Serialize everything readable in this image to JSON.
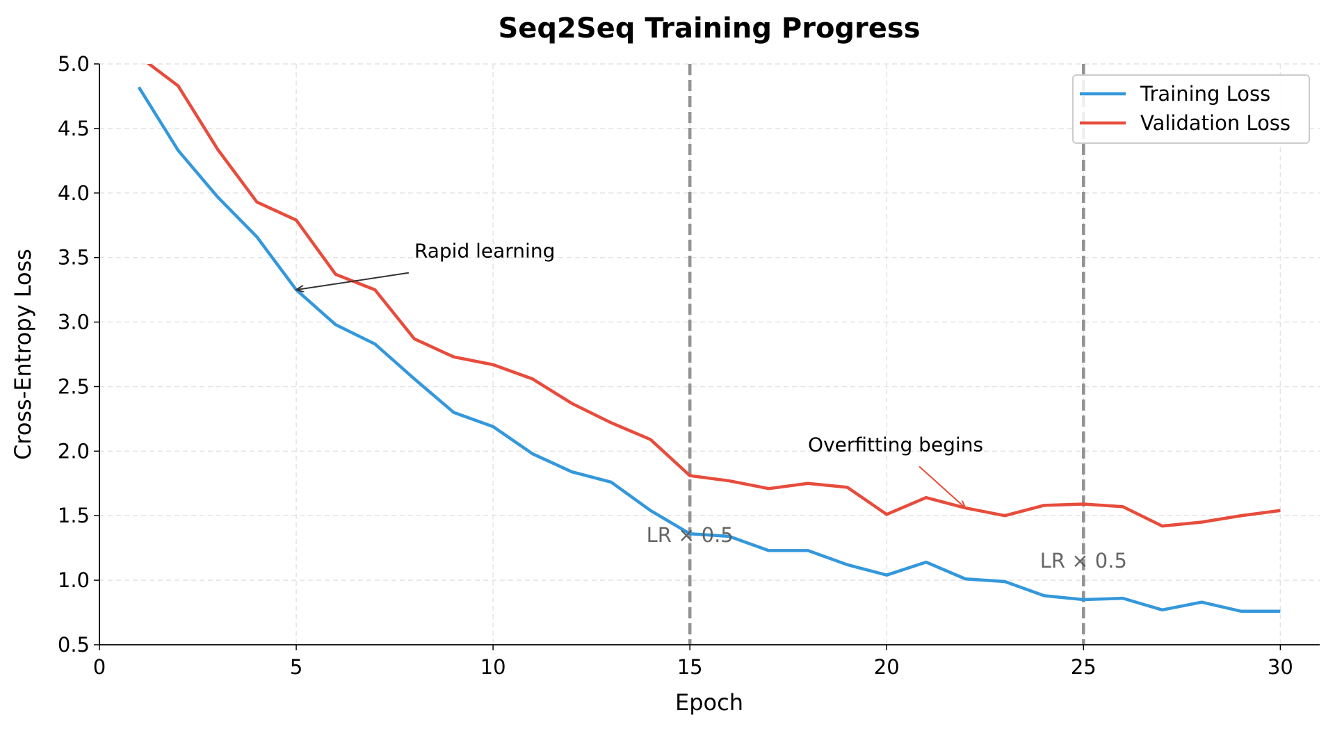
{
  "chart_data": {
    "type": "line",
    "title": "Seq2Seq Training Progress",
    "xlabel": "Epoch",
    "ylabel": "Cross-Entropy Loss",
    "xlim": [
      0,
      31
    ],
    "ylim": [
      0.5,
      5.0
    ],
    "xticks": [
      0,
      5,
      10,
      15,
      20,
      25,
      30
    ],
    "yticks": [
      0.5,
      1.0,
      1.5,
      2.0,
      2.5,
      3.0,
      3.5,
      4.0,
      4.5,
      5.0
    ],
    "grid": true,
    "legend_position": "top-right",
    "x": [
      1,
      2,
      3,
      4,
      5,
      6,
      7,
      8,
      9,
      10,
      11,
      12,
      13,
      14,
      15,
      16,
      17,
      18,
      19,
      20,
      21,
      22,
      23,
      24,
      25,
      26,
      27,
      28,
      29,
      30
    ],
    "series": [
      {
        "name": "Training Loss",
        "color": "#3498db",
        "values": [
          4.82,
          4.33,
          3.97,
          3.66,
          3.25,
          2.98,
          2.83,
          2.56,
          2.3,
          2.19,
          1.98,
          1.84,
          1.76,
          1.54,
          1.36,
          1.34,
          1.23,
          1.23,
          1.12,
          1.04,
          1.14,
          1.01,
          0.99,
          0.88,
          0.85,
          0.86,
          0.77,
          0.83,
          0.76,
          0.76
        ]
      },
      {
        "name": "Validation Loss",
        "color": "#e74c3c",
        "values": [
          5.06,
          4.83,
          4.34,
          3.93,
          3.79,
          3.37,
          3.25,
          2.87,
          2.73,
          2.67,
          2.56,
          2.37,
          2.22,
          2.09,
          1.81,
          1.77,
          1.71,
          1.75,
          1.72,
          1.51,
          1.64,
          1.56,
          1.5,
          1.58,
          1.59,
          1.57,
          1.42,
          1.45,
          1.5,
          1.54
        ]
      }
    ],
    "vlines": [
      {
        "x": 15,
        "label": "LR × 0.5",
        "label_y": 1.35
      },
      {
        "x": 25,
        "label": "LR × 0.5",
        "label_y": 1.15
      }
    ],
    "annotations": [
      {
        "text": "Rapid learning",
        "text_x": 8,
        "text_y": 3.5,
        "arrow_x": 5,
        "arrow_y": 3.25,
        "color": "#333333"
      },
      {
        "text": "Overfitting begins",
        "text_x": 18,
        "text_y": 2.0,
        "arrow_x": 22,
        "arrow_y": 1.56,
        "color": "#e74c3c"
      }
    ]
  }
}
